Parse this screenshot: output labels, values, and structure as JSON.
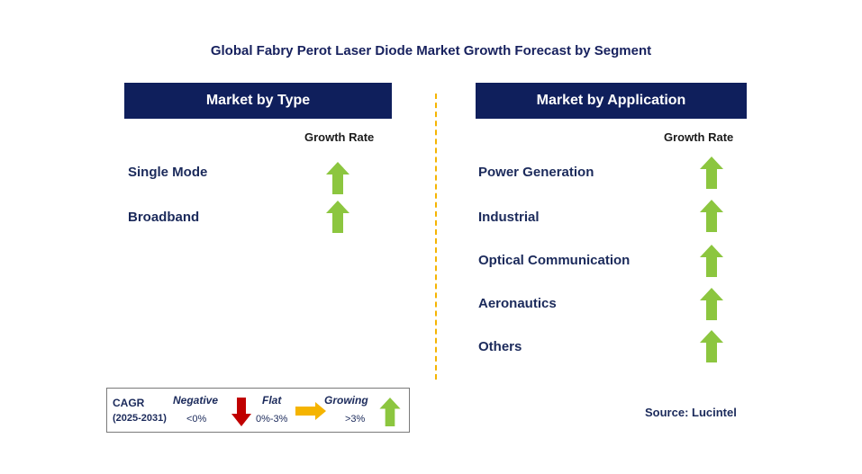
{
  "title": "Global Fabry Perot Laser Diode Market Growth Forecast by Segment",
  "left_panel": {
    "header": "Market by Type",
    "growth_rate_label": "Growth Rate",
    "items": [
      {
        "label": "Single Mode",
        "trend": "growing"
      },
      {
        "label": "Broadband",
        "trend": "growing"
      }
    ]
  },
  "right_panel": {
    "header": "Market by Application",
    "growth_rate_label": "Growth Rate",
    "items": [
      {
        "label": "Power Generation",
        "trend": "growing"
      },
      {
        "label": "Industrial",
        "trend": "growing"
      },
      {
        "label": "Optical Communication",
        "trend": "growing"
      },
      {
        "label": "Aeronautics",
        "trend": "growing"
      },
      {
        "label": "Others",
        "trend": "growing"
      }
    ]
  },
  "legend": {
    "cagr": "CAGR",
    "period": "(2025-2031)",
    "negative_label": "Negative",
    "negative_value": "<0%",
    "flat_label": "Flat",
    "flat_value": "0%-3%",
    "growing_label": "Growing",
    "growing_value": ">3%"
  },
  "source": "Source: Lucintel",
  "colors": {
    "header_bg": "#0f1f5c",
    "growing_arrow": "#8cc63f",
    "negative_arrow": "#c00000",
    "flat_arrow": "#f5b400",
    "divider": "#f5b400"
  }
}
